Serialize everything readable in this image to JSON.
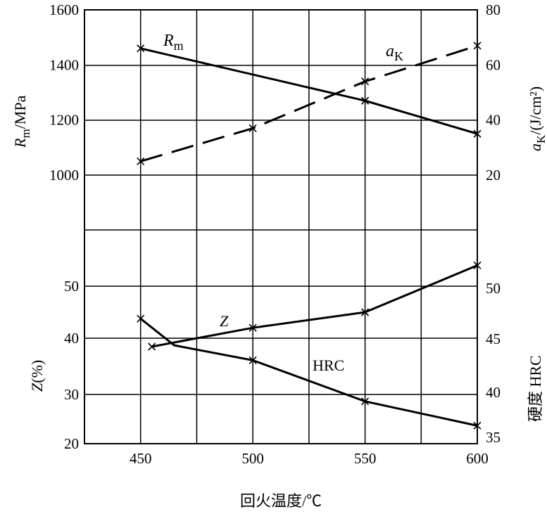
{
  "chart_data": {
    "type": "line",
    "x_label": "回火温度/℃",
    "x_ticks": [
      450,
      500,
      550,
      600
    ],
    "grid": true,
    "panels": [
      {
        "name": "top",
        "left_axis": {
          "label": "R_m/MPa",
          "label_main": "R",
          "label_sub": "m",
          "label_rest": "/MPa",
          "ticks": [
            1000,
            1200,
            1400,
            1600
          ],
          "range": [
            800,
            1600
          ]
        },
        "right_axis": {
          "label": "a_K/(J/cm²)",
          "label_main": "a",
          "label_sub": "K",
          "label_rest": "/(J/cm²)",
          "ticks": [
            20,
            40,
            60,
            80
          ],
          "range": [
            0,
            80
          ]
        },
        "series": [
          {
            "name": "Rm",
            "name_main": "R",
            "name_sub": "m",
            "axis": "left",
            "style": "solid",
            "points": [
              [
                450,
                1460
              ],
              [
                550,
                1270
              ],
              [
                600,
                1150
              ]
            ]
          },
          {
            "name": "aK",
            "name_main": "a",
            "name_sub": "K",
            "axis": "right",
            "style": "dashed",
            "points": [
              [
                450,
                25
              ],
              [
                500,
                37
              ],
              [
                550,
                54
              ],
              [
                600,
                67
              ]
            ]
          }
        ]
      },
      {
        "name": "bottom",
        "left_axis": {
          "label": "Z(%)",
          "label_main": "Z",
          "label_rest": "(%)",
          "ticks": [
            20,
            30,
            40,
            50
          ],
          "range": [
            20,
            60
          ]
        },
        "right_axis": {
          "label": "硬度  HRC",
          "ticks": [
            35,
            40,
            45,
            50
          ],
          "range": [
            35,
            55
          ]
        },
        "series": [
          {
            "name": "Z",
            "axis": "left",
            "style": "solid",
            "points": [
              [
                455,
                38.5
              ],
              [
                500,
                42
              ],
              [
                550,
                45
              ],
              [
                600,
                54
              ]
            ]
          },
          {
            "name": "HRC",
            "axis": "right",
            "style": "solid",
            "points": [
              [
                450,
                47
              ],
              [
                465,
                44.4
              ],
              [
                500,
                43
              ],
              [
                550,
                39
              ],
              [
                600,
                36.3
              ]
            ]
          }
        ]
      }
    ]
  }
}
